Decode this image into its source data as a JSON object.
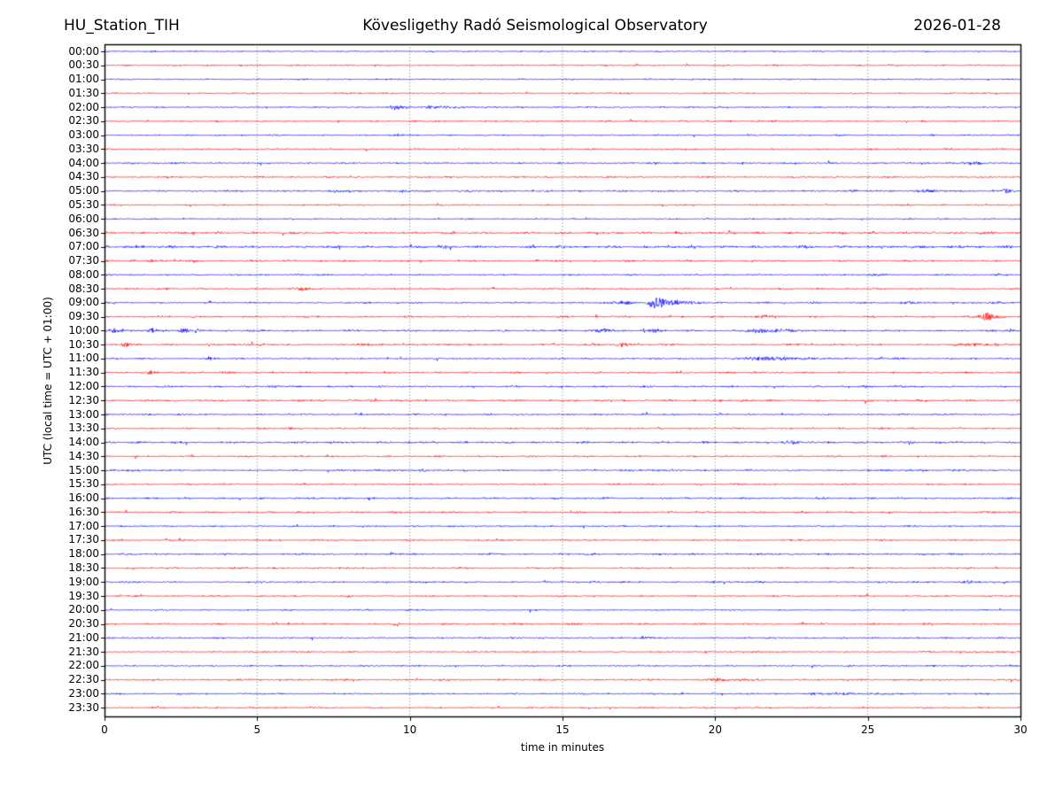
{
  "header": {
    "station": "HU_Station_TIH",
    "observatory": "Kövesligethy Radó Seismological Observatory",
    "date": "2026-01-28"
  },
  "chart_data": {
    "type": "line",
    "subtype": "helicorder-day-plot",
    "title": "Kövesligethy Radó Seismological Observatory",
    "station": "HU_Station_TIH",
    "date": "2026-01-28",
    "xlabel": "time in minutes",
    "ylabel": "UTC (local time = UTC + 01:00)",
    "xlim": [
      0,
      30
    ],
    "x_ticks": [
      0,
      5,
      10,
      15,
      20,
      25,
      30
    ],
    "grid": {
      "vertical_dotted_at": [
        5,
        10,
        15,
        20,
        25
      ],
      "color": "#666666",
      "horizontal": false
    },
    "trace_colors": {
      "hour_line": "#0000ff",
      "half_hour_line": "#ff0000"
    },
    "axis_color": "#000000",
    "background_color": "#ffffff",
    "minutes_per_row": 30,
    "rows": [
      {
        "label": "00:00",
        "color": "#0000ff",
        "noise": 0.9,
        "events": []
      },
      {
        "label": "00:30",
        "color": "#ff0000",
        "noise": 0.95,
        "events": []
      },
      {
        "label": "01:00",
        "color": "#0000ff",
        "noise": 0.9,
        "events": []
      },
      {
        "label": "01:30",
        "color": "#ff0000",
        "noise": 0.9,
        "events": []
      },
      {
        "label": "02:00",
        "color": "#0000ff",
        "noise": 0.95,
        "events": [
          {
            "start": 9.2,
            "peak": 9.5,
            "end": 10.4,
            "amp": 3.2
          },
          {
            "start": 10.4,
            "peak": 10.6,
            "end": 14.8,
            "amp": 1.4
          }
        ]
      },
      {
        "label": "02:30",
        "color": "#ff0000",
        "noise": 1.0,
        "events": [
          {
            "start": 21.4,
            "peak": 22.0,
            "end": 24.5,
            "amp": 0.7
          }
        ]
      },
      {
        "label": "03:00",
        "color": "#0000ff",
        "noise": 0.9,
        "events": [
          {
            "start": 9.3,
            "peak": 9.6,
            "end": 10.6,
            "amp": 1.1
          }
        ]
      },
      {
        "label": "03:30",
        "color": "#ff0000",
        "noise": 0.95,
        "events": []
      },
      {
        "label": "04:00",
        "color": "#0000ff",
        "noise": 1.0,
        "events": [
          {
            "start": 27.9,
            "peak": 28.4,
            "end": 29.6,
            "amp": 1.9
          }
        ]
      },
      {
        "label": "04:30",
        "color": "#ff0000",
        "noise": 1.0,
        "events": []
      },
      {
        "label": "05:00",
        "color": "#0000ff",
        "noise": 1.1,
        "events": [
          {
            "start": 7.2,
            "peak": 7.55,
            "end": 8.2,
            "amp": 1.7
          },
          {
            "start": 9.4,
            "peak": 9.75,
            "end": 10.4,
            "amp": 1.7
          },
          {
            "start": 24.1,
            "peak": 24.45,
            "end": 25.2,
            "amp": 1.6
          },
          {
            "start": 26.2,
            "peak": 26.9,
            "end": 28.2,
            "amp": 1.7
          },
          {
            "start": 29.25,
            "peak": 29.55,
            "end": 29.95,
            "amp": 2.6
          }
        ]
      },
      {
        "label": "05:30",
        "color": "#ff0000",
        "noise": 0.95,
        "events": []
      },
      {
        "label": "06:00",
        "color": "#0000ff",
        "noise": 0.9,
        "events": []
      },
      {
        "label": "06:30",
        "color": "#ff0000",
        "noise": 1.4,
        "events": []
      },
      {
        "label": "07:00",
        "color": "#0000ff",
        "noise": 1.5,
        "events": [
          {
            "start": 0.0,
            "peak": 0.8,
            "end": 4.0,
            "amp": 1.0
          },
          {
            "start": 10.1,
            "peak": 10.45,
            "end": 11.2,
            "amp": 1.2
          },
          {
            "start": 22.4,
            "peak": 22.9,
            "end": 23.8,
            "amp": 1.2
          },
          {
            "start": 27.4,
            "peak": 28.0,
            "end": 28.8,
            "amp": 1.1
          }
        ]
      },
      {
        "label": "07:30",
        "color": "#ff0000",
        "noise": 1.1,
        "events": [
          {
            "start": 1.15,
            "peak": 1.5,
            "end": 2.1,
            "amp": 1.8
          }
        ]
      },
      {
        "label": "08:00",
        "color": "#0000ff",
        "noise": 1.0,
        "events": [
          {
            "start": 24.8,
            "peak": 25.15,
            "end": 26.0,
            "amp": 1.7
          },
          {
            "start": 28.9,
            "peak": 29.25,
            "end": 29.8,
            "amp": 1.1
          }
        ]
      },
      {
        "label": "08:30",
        "color": "#ff0000",
        "noise": 1.0,
        "events": [
          {
            "start": 6.0,
            "peak": 6.45,
            "end": 7.2,
            "amp": 2.1
          }
        ]
      },
      {
        "label": "09:00",
        "color": "#0000ff",
        "noise": 1.0,
        "events": [
          {
            "start": 16.1,
            "peak": 17.2,
            "end": 17.7,
            "amp": 2.4
          },
          {
            "start": 17.7,
            "peak": 17.95,
            "end": 19.8,
            "amp": 6.8
          },
          {
            "start": 25.7,
            "peak": 26.3,
            "end": 27.4,
            "amp": 1.6
          },
          {
            "start": 28.7,
            "peak": 29.2,
            "end": 29.9,
            "amp": 1.3
          }
        ]
      },
      {
        "label": "09:30",
        "color": "#ff0000",
        "noise": 1.1,
        "events": [
          {
            "start": 21.1,
            "peak": 21.65,
            "end": 22.6,
            "amp": 1.8
          },
          {
            "start": 28.5,
            "peak": 28.9,
            "end": 29.75,
            "amp": 5.2
          }
        ]
      },
      {
        "label": "10:00",
        "color": "#0000ff",
        "noise": 1.2,
        "events": [
          {
            "start": 0.0,
            "peak": 0.35,
            "end": 1.0,
            "amp": 2.8
          },
          {
            "start": 1.25,
            "peak": 1.6,
            "end": 2.05,
            "amp": 3.0
          },
          {
            "start": 2.3,
            "peak": 2.55,
            "end": 3.1,
            "amp": 3.0
          },
          {
            "start": 16.0,
            "peak": 16.35,
            "end": 16.9,
            "amp": 2.8
          },
          {
            "start": 17.75,
            "peak": 18.05,
            "end": 18.6,
            "amp": 2.1
          },
          {
            "start": 20.9,
            "peak": 21.4,
            "end": 24.4,
            "amp": 2.5
          },
          {
            "start": 29.3,
            "peak": 29.65,
            "end": 30.0,
            "amp": 2.2
          }
        ]
      },
      {
        "label": "10:30",
        "color": "#ff0000",
        "noise": 1.2,
        "events": [
          {
            "start": 0.45,
            "peak": 0.7,
            "end": 1.25,
            "amp": 2.7
          },
          {
            "start": 7.7,
            "peak": 8.5,
            "end": 9.8,
            "amp": 1.5
          },
          {
            "start": 16.6,
            "peak": 16.95,
            "end": 17.5,
            "amp": 2.3
          },
          {
            "start": 27.6,
            "peak": 28.5,
            "end": 29.7,
            "amp": 1.8
          }
        ]
      },
      {
        "label": "11:00",
        "color": "#0000ff",
        "noise": 1.0,
        "events": [
          {
            "start": 3.15,
            "peak": 3.45,
            "end": 4.05,
            "amp": 1.7
          },
          {
            "start": 20.1,
            "peak": 21.6,
            "end": 25.3,
            "amp": 2.3
          },
          {
            "start": 25.6,
            "peak": 25.95,
            "end": 26.5,
            "amp": 1.3
          }
        ]
      },
      {
        "label": "11:30",
        "color": "#ff0000",
        "noise": 1.1,
        "events": [
          {
            "start": 1.25,
            "peak": 1.55,
            "end": 2.15,
            "amp": 1.9
          }
        ]
      },
      {
        "label": "12:00",
        "color": "#0000ff",
        "noise": 1.1,
        "events": [
          {
            "start": 5.1,
            "peak": 5.6,
            "end": 6.4,
            "amp": 1.1
          }
        ]
      },
      {
        "label": "12:30",
        "color": "#ff0000",
        "noise": 1.15,
        "events": []
      },
      {
        "label": "13:00",
        "color": "#0000ff",
        "noise": 1.0,
        "events": [
          {
            "start": 25.7,
            "peak": 26.1,
            "end": 26.8,
            "amp": 1.1
          }
        ]
      },
      {
        "label": "13:30",
        "color": "#ff0000",
        "noise": 1.0,
        "events": [
          {
            "start": 5.7,
            "peak": 6.1,
            "end": 6.7,
            "amp": 1.1
          },
          {
            "start": 25.1,
            "peak": 25.5,
            "end": 26.2,
            "amp": 1.2
          }
        ]
      },
      {
        "label": "14:00",
        "color": "#0000ff",
        "noise": 1.3,
        "events": [
          {
            "start": 22.2,
            "peak": 22.55,
            "end": 23.2,
            "amp": 2.1
          }
        ]
      },
      {
        "label": "14:30",
        "color": "#ff0000",
        "noise": 1.0,
        "events": []
      },
      {
        "label": "15:00",
        "color": "#0000ff",
        "noise": 1.2,
        "events": []
      },
      {
        "label": "15:30",
        "color": "#ff0000",
        "noise": 1.0,
        "events": []
      },
      {
        "label": "16:00",
        "color": "#0000ff",
        "noise": 1.1,
        "events": []
      },
      {
        "label": "16:30",
        "color": "#ff0000",
        "noise": 1.1,
        "events": [
          {
            "start": 28.7,
            "peak": 29.1,
            "end": 29.8,
            "amp": 1.1
          }
        ]
      },
      {
        "label": "17:00",
        "color": "#0000ff",
        "noise": 1.0,
        "events": []
      },
      {
        "label": "17:30",
        "color": "#ff0000",
        "noise": 1.0,
        "events": []
      },
      {
        "label": "18:00",
        "color": "#0000ff",
        "noise": 1.2,
        "events": []
      },
      {
        "label": "18:30",
        "color": "#ff0000",
        "noise": 1.1,
        "events": []
      },
      {
        "label": "19:00",
        "color": "#0000ff",
        "noise": 1.1,
        "events": [
          {
            "start": 27.7,
            "peak": 28.3,
            "end": 29.5,
            "amp": 1.7
          }
        ]
      },
      {
        "label": "19:30",
        "color": "#ff0000",
        "noise": 1.0,
        "events": []
      },
      {
        "label": "20:00",
        "color": "#0000ff",
        "noise": 0.9,
        "events": []
      },
      {
        "label": "20:30",
        "color": "#ff0000",
        "noise": 1.1,
        "events": []
      },
      {
        "label": "21:00",
        "color": "#0000ff",
        "noise": 1.0,
        "events": [
          {
            "start": 16.9,
            "peak": 17.9,
            "end": 19.3,
            "amp": 0.8
          }
        ]
      },
      {
        "label": "21:30",
        "color": "#ff0000",
        "noise": 0.95,
        "events": []
      },
      {
        "label": "22:00",
        "color": "#0000ff",
        "noise": 0.95,
        "events": []
      },
      {
        "label": "22:30",
        "color": "#ff0000",
        "noise": 1.1,
        "events": [
          {
            "start": 19.5,
            "peak": 20.05,
            "end": 21.0,
            "amp": 2.3
          }
        ]
      },
      {
        "label": "23:00",
        "color": "#0000ff",
        "noise": 1.0,
        "events": [
          {
            "start": 22.2,
            "peak": 24.2,
            "end": 26.7,
            "amp": 1.4
          }
        ]
      },
      {
        "label": "23:30",
        "color": "#ff0000",
        "noise": 1.0,
        "events": []
      }
    ]
  }
}
